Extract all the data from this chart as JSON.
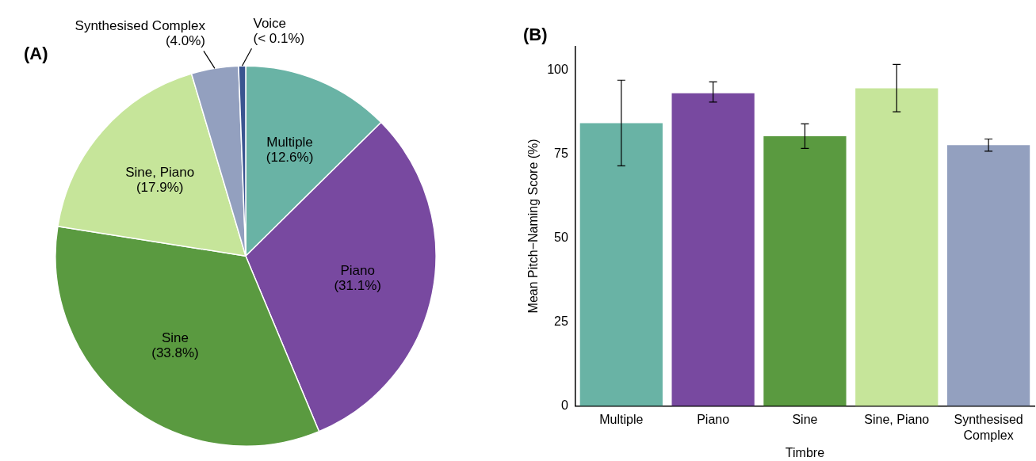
{
  "chart_data": [
    {
      "type": "pie",
      "title": "(A)",
      "categories": [
        "Multiple",
        "Piano",
        "Sine",
        "Sine, Piano",
        "Synthesised Complex",
        "Voice"
      ],
      "values": [
        12.6,
        31.1,
        33.8,
        17.9,
        4.0,
        0.6
      ],
      "value_labels": [
        "(12.6%)",
        "(31.1%)",
        "(33.8%)",
        "(17.9%)",
        "(4.0%)",
        "(< 0.1%)"
      ],
      "colors": [
        "#69b3a5",
        "#7849a0",
        "#5a9a40",
        "#c6e59a",
        "#93a0bf",
        "#3a5590"
      ]
    },
    {
      "type": "bar",
      "title": "(B)",
      "categories": [
        "Multiple",
        "Piano",
        "Sine",
        "Sine, Piano",
        "Synthesised Complex"
      ],
      "values": [
        84.1,
        93.0,
        80.2,
        94.5,
        77.6
      ],
      "errors": [
        [
          71.4,
          96.9
        ],
        [
          90.4,
          96.4
        ],
        [
          76.6,
          83.9
        ],
        [
          87.5,
          101.6
        ],
        [
          75.8,
          79.4
        ]
      ],
      "colors": [
        "#69b3a5",
        "#7849a0",
        "#5a9a40",
        "#c6e59a",
        "#93a0bf"
      ],
      "xlabel": "Timbre",
      "ylabel": "Mean Pitch−Naming Score (%)",
      "ylim": [
        0,
        107
      ],
      "yticks": [
        0,
        25,
        50,
        75,
        100
      ]
    }
  ]
}
